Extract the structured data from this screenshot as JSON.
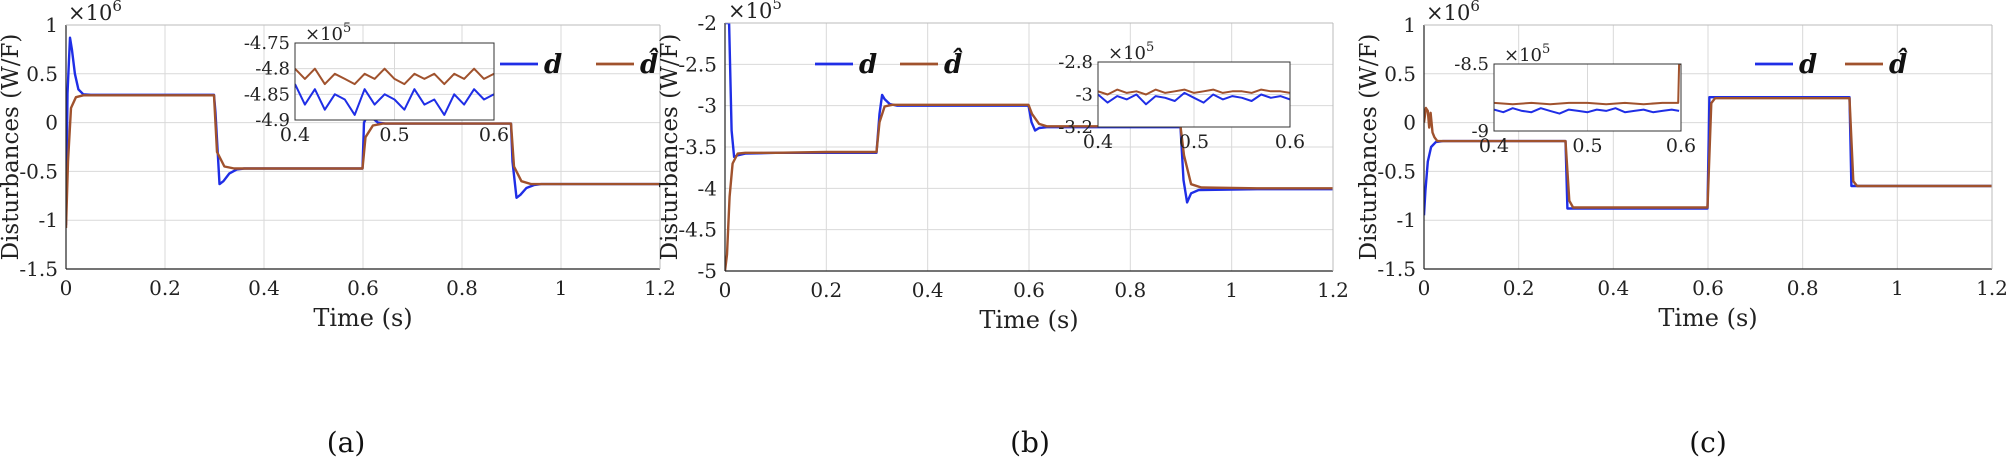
{
  "colors": {
    "d": "#1f2ee6",
    "d_hat": "#a0522d",
    "grid": "#d9d9d9",
    "axis": "#222222"
  },
  "chart_data": [
    {
      "type": "line",
      "caption": "(a)",
      "xlabel": "Time (s)",
      "ylabel": "Disturbances (W/F)",
      "exponent_base": "×10",
      "exponent_power": "6",
      "xlim": [
        0,
        1.2
      ],
      "ylim": [
        -1.5,
        1
      ],
      "x_ticks": [
        0,
        0.2,
        0.4,
        0.6,
        0.8,
        1,
        1.2
      ],
      "x_tick_labels": [
        "0",
        "0.2",
        "0.4",
        "0.6",
        "0.8",
        "1",
        "1.2"
      ],
      "y_ticks": [
        -1.5,
        -1,
        -0.5,
        0,
        0.5,
        1
      ],
      "y_tick_labels": [
        "-1.5",
        "-1",
        "-0.5",
        "0",
        "0.5",
        "1"
      ],
      "legend": [
        "d",
        "d̂"
      ],
      "series": [
        {
          "name": "d",
          "x": [
            0,
            0.003,
            0.008,
            0.012,
            0.018,
            0.025,
            0.035,
            0.05,
            0.299,
            0.302,
            0.31,
            0.318,
            0.33,
            0.345,
            0.36,
            0.599,
            0.602,
            0.61,
            0.618,
            0.63,
            0.645,
            0.66,
            0.899,
            0.902,
            0.91,
            0.918,
            0.93,
            0.945,
            0.96,
            1.2
          ],
          "y": [
            -1.05,
            0.3,
            0.87,
            0.75,
            0.5,
            0.34,
            0.29,
            0.285,
            0.285,
            0.1,
            -0.63,
            -0.6,
            -0.52,
            -0.48,
            -0.47,
            -0.47,
            0.0,
            0.08,
            0.05,
            0.0,
            -0.01,
            -0.01,
            -0.01,
            -0.4,
            -0.77,
            -0.74,
            -0.67,
            -0.64,
            -0.63,
            -0.63
          ]
        },
        {
          "name": "d̂",
          "x": [
            0,
            0.004,
            0.01,
            0.02,
            0.035,
            0.05,
            0.299,
            0.305,
            0.32,
            0.34,
            0.599,
            0.605,
            0.62,
            0.64,
            0.899,
            0.905,
            0.92,
            0.94,
            1.2
          ],
          "y": [
            -1.08,
            -0.4,
            0.15,
            0.26,
            0.28,
            0.28,
            0.28,
            -0.3,
            -0.45,
            -0.47,
            -0.47,
            -0.15,
            -0.03,
            -0.01,
            -0.01,
            -0.45,
            -0.6,
            -0.63,
            -0.63
          ]
        }
      ],
      "inset": {
        "xlim": [
          0.4,
          0.6
        ],
        "ylim": [
          -4.9,
          -4.75
        ],
        "exponent_base": "×10",
        "exponent_power": "5",
        "x_ticks": [
          0.4,
          0.5,
          0.6
        ],
        "x_tick_labels": [
          "0.4",
          "0.5",
          "0.6"
        ],
        "y_ticks": [
          -4.9,
          -4.85,
          -4.8,
          -4.75
        ],
        "y_tick_labels": [
          "-4.9",
          "-4.85",
          "-4.8",
          "-4.75"
        ],
        "series": [
          {
            "name": "d",
            "x": [
              0.4,
              0.41,
              0.42,
              0.43,
              0.44,
              0.45,
              0.46,
              0.47,
              0.48,
              0.49,
              0.5,
              0.51,
              0.52,
              0.53,
              0.54,
              0.55,
              0.56,
              0.57,
              0.58,
              0.59,
              0.6
            ],
            "y": [
              -4.83,
              -4.87,
              -4.84,
              -4.88,
              -4.85,
              -4.86,
              -4.89,
              -4.84,
              -4.87,
              -4.85,
              -4.86,
              -4.88,
              -4.84,
              -4.87,
              -4.86,
              -4.89,
              -4.85,
              -4.87,
              -4.84,
              -4.86,
              -4.85
            ]
          },
          {
            "name": "d̂",
            "x": [
              0.4,
              0.41,
              0.42,
              0.43,
              0.44,
              0.45,
              0.46,
              0.47,
              0.48,
              0.49,
              0.5,
              0.51,
              0.52,
              0.53,
              0.54,
              0.55,
              0.56,
              0.57,
              0.58,
              0.59,
              0.6
            ],
            "y": [
              -4.8,
              -4.82,
              -4.8,
              -4.83,
              -4.81,
              -4.82,
              -4.83,
              -4.81,
              -4.82,
              -4.8,
              -4.82,
              -4.83,
              -4.81,
              -4.82,
              -4.81,
              -4.83,
              -4.81,
              -4.82,
              -4.8,
              -4.82,
              -4.81
            ]
          }
        ]
      }
    },
    {
      "type": "line",
      "caption": "(b)",
      "xlabel": "Time (s)",
      "ylabel": "Disturbances (W/F)",
      "exponent_base": "×10",
      "exponent_power": "5",
      "xlim": [
        0,
        1.2
      ],
      "ylim": [
        -5,
        -2
      ],
      "x_ticks": [
        0,
        0.2,
        0.4,
        0.6,
        0.8,
        1,
        1.2
      ],
      "x_tick_labels": [
        "0",
        "0.2",
        "0.4",
        "0.6",
        "0.8",
        "1",
        "1.2"
      ],
      "y_ticks": [
        -5,
        -4.5,
        -4,
        -3.5,
        -3,
        -2.5,
        -2
      ],
      "y_tick_labels": [
        "-5",
        "-4.5",
        "-4",
        "-3.5",
        "-3",
        "-2.5",
        "-2"
      ],
      "legend": [
        "d",
        "d̂"
      ],
      "series": [
        {
          "name": "d",
          "x": [
            0,
            0.008,
            0.013,
            0.018,
            0.025,
            0.04,
            0.1,
            0.2,
            0.299,
            0.305,
            0.31,
            0.315,
            0.325,
            0.34,
            0.45,
            0.599,
            0.605,
            0.612,
            0.62,
            0.635,
            0.75,
            0.899,
            0.905,
            0.912,
            0.92,
            0.935,
            1.05,
            1.2
          ],
          "y": [
            -2.0,
            -2.0,
            -3.3,
            -3.62,
            -3.6,
            -3.58,
            -3.57,
            -3.57,
            -3.57,
            -3.1,
            -2.87,
            -2.92,
            -2.98,
            -3.0,
            -3.0,
            -3.0,
            -3.2,
            -3.3,
            -3.27,
            -3.26,
            -3.26,
            -3.26,
            -3.9,
            -4.17,
            -4.06,
            -4.02,
            -4.01,
            -4.01
          ]
        },
        {
          "name": "d̂",
          "x": [
            0,
            0.004,
            0.009,
            0.015,
            0.025,
            0.04,
            0.1,
            0.2,
            0.299,
            0.305,
            0.315,
            0.33,
            0.45,
            0.599,
            0.606,
            0.62,
            0.635,
            0.75,
            0.899,
            0.906,
            0.92,
            0.94,
            1.05,
            1.2
          ],
          "y": [
            -5.0,
            -4.8,
            -4.1,
            -3.7,
            -3.58,
            -3.57,
            -3.57,
            -3.56,
            -3.56,
            -3.2,
            -3.01,
            -2.99,
            -2.99,
            -2.99,
            -3.1,
            -3.22,
            -3.25,
            -3.25,
            -3.25,
            -3.6,
            -3.95,
            -3.99,
            -4.0,
            -4.0
          ]
        }
      ],
      "inset": {
        "xlim": [
          0.4,
          0.6
        ],
        "ylim": [
          -3.2,
          -2.8
        ],
        "exponent_base": "×10",
        "exponent_power": "5",
        "x_ticks": [
          0.4,
          0.5,
          0.6
        ],
        "x_tick_labels": [
          "0.4",
          "0.5",
          "0.6"
        ],
        "y_ticks": [
          -3.2,
          -3,
          -2.8
        ],
        "y_tick_labels": [
          "-3.2",
          "-3",
          "-2.8"
        ],
        "series": [
          {
            "name": "d",
            "x": [
              0.4,
              0.41,
              0.42,
              0.43,
              0.44,
              0.45,
              0.46,
              0.47,
              0.48,
              0.49,
              0.5,
              0.51,
              0.52,
              0.53,
              0.54,
              0.55,
              0.56,
              0.57,
              0.58,
              0.59,
              0.6
            ],
            "y": [
              -3.0,
              -3.05,
              -3.01,
              -3.03,
              -3.0,
              -3.06,
              -3.01,
              -3.02,
              -3.04,
              -2.99,
              -3.02,
              -3.05,
              -3.0,
              -3.03,
              -3.01,
              -3.02,
              -3.04,
              -3.0,
              -3.02,
              -3.01,
              -3.03
            ]
          },
          {
            "name": "d̂",
            "x": [
              0.4,
              0.41,
              0.42,
              0.43,
              0.44,
              0.45,
              0.46,
              0.47,
              0.48,
              0.49,
              0.5,
              0.51,
              0.52,
              0.53,
              0.54,
              0.55,
              0.56,
              0.57,
              0.58,
              0.59,
              0.6
            ],
            "y": [
              -2.98,
              -3.0,
              -2.97,
              -2.99,
              -2.98,
              -3.0,
              -2.97,
              -2.99,
              -2.98,
              -2.97,
              -2.99,
              -2.98,
              -2.97,
              -2.99,
              -2.98,
              -2.98,
              -2.99,
              -2.97,
              -2.98,
              -2.98,
              -2.99
            ]
          }
        ]
      }
    },
    {
      "type": "line",
      "caption": "(c)",
      "xlabel": "Time (s)",
      "ylabel": "Disturbances (W/F)",
      "exponent_base": "×10",
      "exponent_power": "6",
      "xlim": [
        0,
        1.2
      ],
      "ylim": [
        -1.5,
        1
      ],
      "x_ticks": [
        0,
        0.2,
        0.4,
        0.6,
        0.8,
        1,
        1.2
      ],
      "x_tick_labels": [
        "0",
        "0.2",
        "0.4",
        "0.6",
        "0.8",
        "1",
        "1.2"
      ],
      "y_ticks": [
        -1.5,
        -1,
        -0.5,
        0,
        0.5,
        1
      ],
      "y_tick_labels": [
        "-1.5",
        "-1",
        "-0.5",
        "0",
        "0.5",
        "1"
      ],
      "legend": [
        "d",
        "d̂"
      ],
      "series": [
        {
          "name": "d",
          "x": [
            0,
            0.003,
            0.008,
            0.015,
            0.025,
            0.04,
            0.1,
            0.299,
            0.303,
            0.31,
            0.599,
            0.603,
            0.61,
            0.899,
            0.903,
            0.91,
            1.2
          ],
          "y": [
            -0.95,
            -0.7,
            -0.4,
            -0.25,
            -0.2,
            -0.19,
            -0.19,
            -0.19,
            -0.88,
            -0.88,
            -0.88,
            0.26,
            0.26,
            0.26,
            -0.65,
            -0.65,
            -0.65
          ]
        },
        {
          "name": "d̂",
          "x": [
            0,
            0.004,
            0.008,
            0.011,
            0.014,
            0.018,
            0.022,
            0.028,
            0.04,
            0.1,
            0.299,
            0.307,
            0.315,
            0.599,
            0.607,
            0.615,
            0.899,
            0.907,
            0.915,
            1.2
          ],
          "y": [
            0.0,
            0.15,
            0.12,
            -0.05,
            0.1,
            -0.1,
            -0.15,
            -0.19,
            -0.19,
            -0.19,
            -0.19,
            -0.8,
            -0.87,
            -0.87,
            0.2,
            0.25,
            0.25,
            -0.6,
            -0.65,
            -0.65
          ]
        }
      ],
      "inset": {
        "xlim": [
          0.4,
          0.6
        ],
        "ylim": [
          -9,
          -8.5
        ],
        "exponent_base": "×10",
        "exponent_power": "5",
        "x_ticks": [
          0.4,
          0.5,
          0.6
        ],
        "x_tick_labels": [
          "0.4",
          "0.5",
          "0.6"
        ],
        "y_ticks": [
          -9,
          -8.5
        ],
        "y_tick_labels": [
          "-9",
          "-8.5"
        ],
        "series": [
          {
            "name": "d",
            "x": [
              0.4,
              0.41,
              0.42,
              0.43,
              0.44,
              0.45,
              0.46,
              0.47,
              0.48,
              0.49,
              0.5,
              0.51,
              0.52,
              0.53,
              0.54,
              0.55,
              0.56,
              0.57,
              0.58,
              0.59,
              0.598
            ],
            "y": [
              -8.84,
              -8.86,
              -8.83,
              -8.85,
              -8.86,
              -8.83,
              -8.85,
              -8.87,
              -8.84,
              -8.85,
              -8.86,
              -8.84,
              -8.85,
              -8.83,
              -8.86,
              -8.85,
              -8.84,
              -8.86,
              -8.85,
              -8.84,
              -8.85
            ]
          },
          {
            "name": "d̂",
            "x": [
              0.4,
              0.42,
              0.44,
              0.46,
              0.48,
              0.5,
              0.52,
              0.54,
              0.56,
              0.58,
              0.597,
              0.598,
              0.6
            ],
            "y": [
              -8.79,
              -8.8,
              -8.79,
              -8.8,
              -8.79,
              -8.79,
              -8.8,
              -8.79,
              -8.8,
              -8.79,
              -8.79,
              -8.5,
              -8.5
            ]
          }
        ]
      }
    }
  ]
}
